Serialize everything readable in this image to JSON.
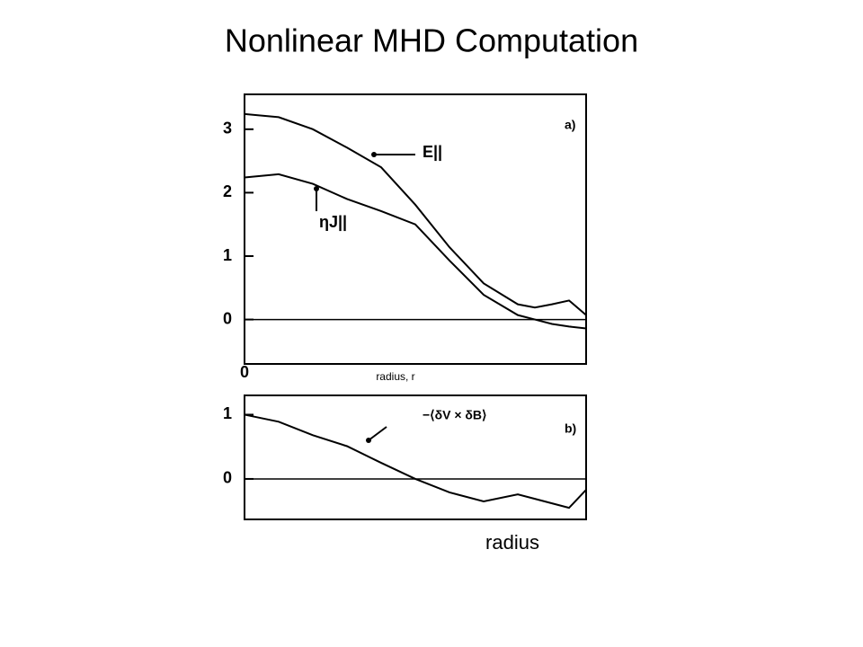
{
  "title": "Nonlinear MHD Computation",
  "chart_data": [
    {
      "type": "line",
      "panel_label": "a)",
      "x_label": "radius, r",
      "x": [
        0,
        0.1,
        0.2,
        0.3,
        0.4,
        0.5,
        0.6,
        0.7,
        0.8,
        0.85,
        0.9,
        0.95,
        1.0
      ],
      "series": [
        {
          "name": "E||",
          "color": "#000000",
          "values": [
            3.24,
            3.19,
            3.0,
            2.71,
            2.4,
            1.81,
            1.14,
            0.57,
            0.24,
            0.19,
            0.24,
            0.3,
            0.07
          ]
        },
        {
          "name": "ηJ||",
          "color": "#000000",
          "values": [
            2.24,
            2.29,
            2.14,
            1.9,
            1.71,
            1.5,
            0.93,
            0.39,
            0.07,
            0.0,
            -0.07,
            -0.11,
            -0.14
          ]
        }
      ],
      "xlim": [
        0,
        1
      ],
      "xticks": [
        0
      ],
      "ylim": [
        -0.7,
        3.55
      ],
      "yticks": [
        0,
        1,
        2,
        3
      ],
      "hline": 0
    },
    {
      "type": "line",
      "panel_label": "b)",
      "x_label": "radius",
      "x": [
        0,
        0.1,
        0.2,
        0.3,
        0.4,
        0.5,
        0.6,
        0.7,
        0.8,
        0.85,
        0.9,
        0.95,
        1.0
      ],
      "series": [
        {
          "name": "−⟨δV × δB⟩",
          "color": "#000000",
          "values": [
            1.0,
            0.89,
            0.68,
            0.51,
            0.25,
            0,
            -0.21,
            -0.35,
            -0.24,
            -0.31,
            -0.38,
            -0.45,
            -0.17
          ]
        }
      ],
      "xlim": [
        0,
        1
      ],
      "xticks": [],
      "ylim": [
        -0.63,
        1.3
      ],
      "yticks": [
        0,
        1
      ],
      "hline": 0
    }
  ]
}
